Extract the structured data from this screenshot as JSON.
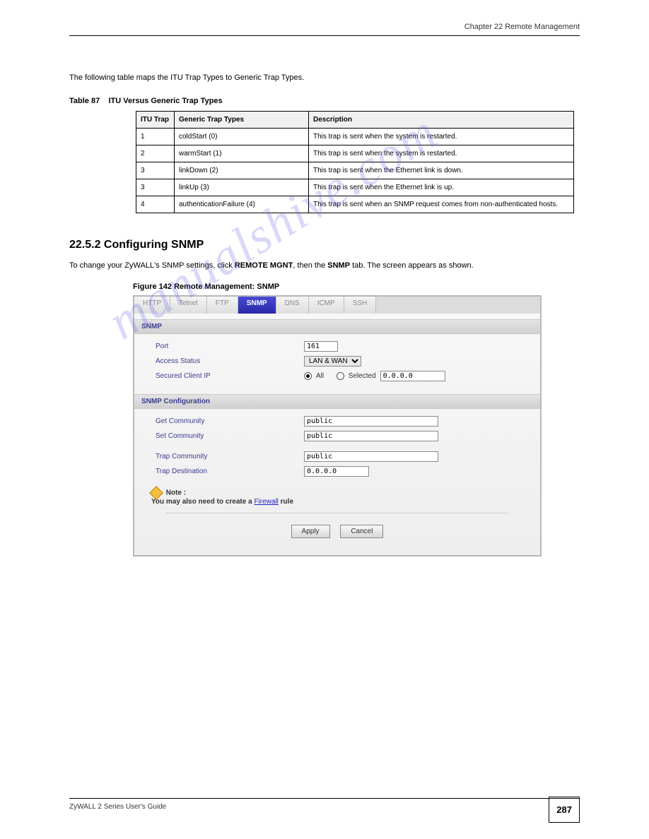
{
  "header": {
    "chapter": "Chapter 22 Remote Management"
  },
  "intro": "The following table maps the ITU Trap Types to Generic Trap Types.",
  "table": {
    "title": "Table 87",
    "subtitle": "ITU Versus Generic Trap Types",
    "header_bg": "#f0f0f0",
    "cols": [
      "ITU Trap",
      "Generic Trap Types",
      "Description"
    ],
    "rows": [
      [
        "1",
        "coldStart (0)",
        "This trap is sent when the system is restarted."
      ],
      [
        "2",
        "warmStart (1)",
        "This trap is sent when the system is restarted."
      ],
      [
        "3",
        "linkDown (2)",
        "This trap is sent when the Ethernet link is down."
      ],
      [
        "3",
        "linkUp (3)",
        "This trap is sent when the Ethernet link is up."
      ],
      [
        "4",
        "authenticationFailure (4)",
        "This trap is sent when an SNMP request comes from non-authenticated hosts."
      ]
    ]
  },
  "section": {
    "num": "22.5.2  Configuring SNMP",
    "text1": "To change your ZyWALL's SNMP settings, click ",
    "bold1": "REMOTE MGNT",
    "text2": ", then the ",
    "bold2": "SNMP",
    "text3": " tab. The screen appears as shown."
  },
  "figure": {
    "prefix": "Figure 142   ",
    "title": "Remote Management: SNMP"
  },
  "tabs": {
    "items": [
      "HTTP",
      "Telnet",
      "FTP",
      "SNMP",
      "DNS",
      "ICMP",
      "SSH"
    ],
    "active_index": 3,
    "active_bg": "#3030b0",
    "inactive_fg": "#888888"
  },
  "panel": {
    "section1": {
      "title": "SNMP",
      "port_label": "Port",
      "port_value": "161",
      "access_label": "Access Status",
      "access_value": "LAN & WAN",
      "secured_label": "Secured Client IP",
      "radio_all": "All",
      "radio_selected": "Selected",
      "selected_ip": "0.0.0.0"
    },
    "section2": {
      "title": "SNMP Configuration",
      "get_label": "Get Community",
      "get_value": "public",
      "set_label": "Set Community",
      "set_value": "public",
      "trapc_label": "Trap Community",
      "trapc_value": "public",
      "trapd_label": "Trap Destination",
      "trapd_value": "0.0.0.0"
    },
    "note": {
      "label": "Note :",
      "text1": "You may also need to create a ",
      "link": "Firewall",
      "text2": " rule"
    },
    "buttons": {
      "apply": "Apply",
      "cancel": "Cancel"
    }
  },
  "footer": {
    "text": "ZyWALL 2 Series User's Guide",
    "page_num": "287"
  },
  "watermark": "manualshive.com",
  "colors": {
    "section_head_fg": "#3b3b8f",
    "link_fg": "#2020c0"
  }
}
